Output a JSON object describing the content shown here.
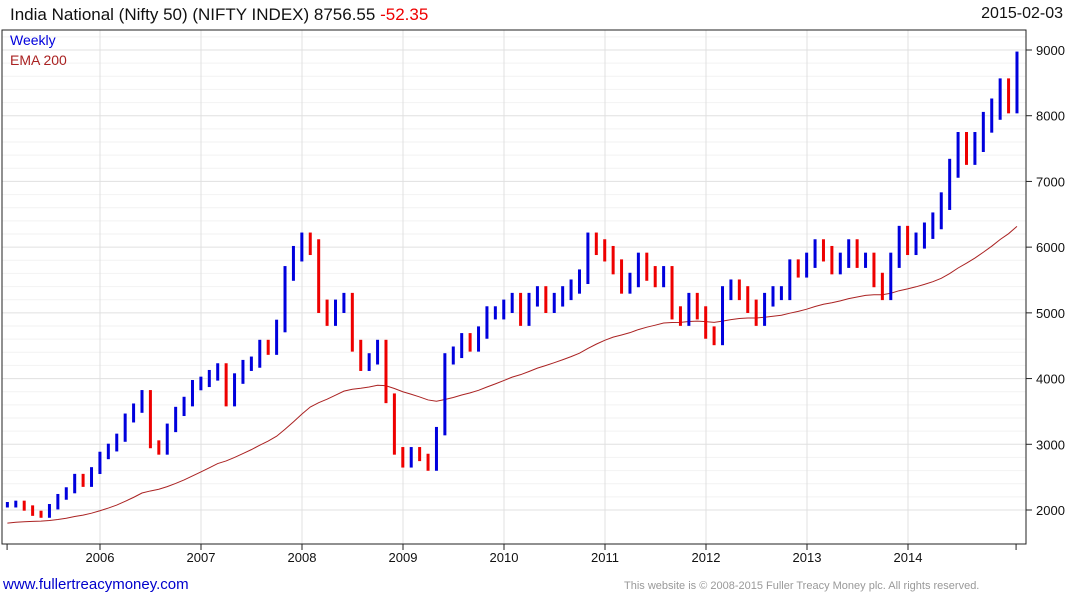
{
  "header": {
    "title": "India National (Nifty 50) (NIFTY INDEX) 8756.55",
    "change": "-52.35",
    "date": "2015-02-03"
  },
  "footer": {
    "link": "www.fullertreacymoney.com",
    "copyright": "This website is © 2008-2015 Fuller Treacy Money plc. All rights reserved."
  },
  "colors": {
    "up": "#0000dd",
    "down": "#ee0000",
    "ema": "#aa2222",
    "grid": "#e0e0e0"
  },
  "chart_data": {
    "type": "line",
    "legend": [
      {
        "name": "Weekly",
        "color": "#0000dd"
      },
      {
        "name": "EMA 200",
        "color": "#aa2222"
      }
    ],
    "legend_placement": "top-left",
    "x_start": 2005.083,
    "x_step_years": 0.0833,
    "xticks": [
      "2006",
      "2007",
      "2008",
      "2009",
      "2010",
      "2011",
      "2012",
      "2013",
      "2014"
    ],
    "yticks": [
      2000,
      3000,
      4000,
      5000,
      6000,
      7000,
      8000,
      9000
    ],
    "ylim": [
      1500,
      9300
    ],
    "xlim": [
      2005.05,
      2015.2
    ],
    "ema_seed": 1800,
    "ema_period_months": 46,
    "values": [
      2080,
      2100,
      2030,
      1950,
      1920,
      2050,
      2200,
      2300,
      2500,
      2400,
      2600,
      2830,
      2950,
      3100,
      3400,
      3550,
      3750,
      3000,
      2900,
      3250,
      3500,
      3650,
      3900,
      3950,
      4050,
      4150,
      3650,
      4000,
      4200,
      4250,
      4500,
      4450,
      4800,
      5600,
      5900,
      6100,
      6000,
      5100,
      4900,
      5100,
      5200,
      4500,
      4200,
      4300,
      4500,
      3700,
      2900,
      2700,
      2900,
      2800,
      2650,
      3200,
      4300,
      4400,
      4600,
      4500,
      4700,
      5000,
      5000,
      5100,
      5200,
      4900,
      5200,
      5300,
      5100,
      5200,
      5300,
      5400,
      5550,
      6100,
      6000,
      5900,
      5700,
      5400,
      5500,
      5800,
      5600,
      5500,
      5600,
      5000,
      4900,
      5200,
      5000,
      4700,
      4600,
      5300,
      5400,
      5300,
      5100,
      4900,
      5200,
      5300,
      5300,
      5700,
      5650,
      5800,
      6000,
      5900,
      5700,
      5800,
      6000,
      5800,
      5800,
      5500,
      5300,
      5800,
      6200,
      6000,
      6100,
      6250,
      6400,
      6700,
      7200,
      7600,
      7400,
      7600,
      7900,
      8100,
      8400,
      8200,
      8800
    ]
  }
}
